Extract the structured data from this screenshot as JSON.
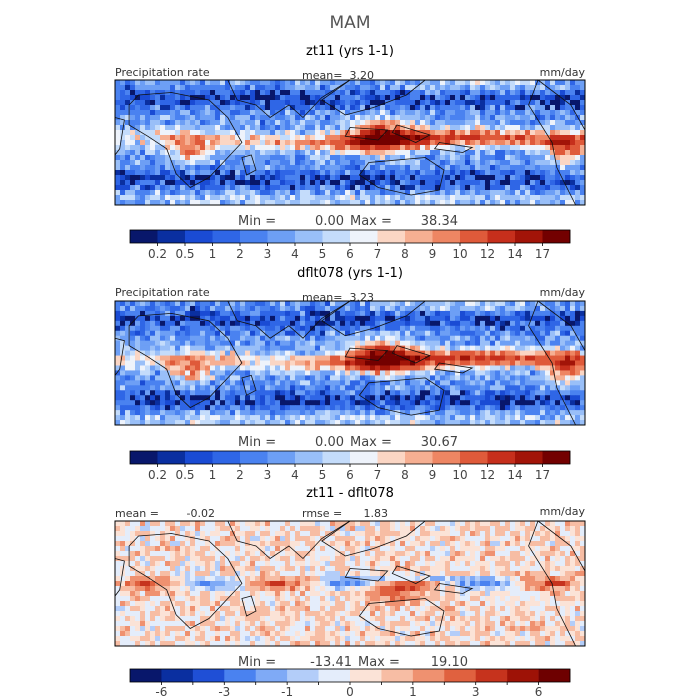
{
  "page_title": "MAM",
  "chart_data": [
    {
      "type": "heatmap",
      "title": "zt11 (yrs 1-1)",
      "variable": "Precipitation rate",
      "units": "mm/day",
      "stat_label": "mean=",
      "stat_value": "3.20",
      "min_max": {
        "min_label": "Min =",
        "min": "0.00",
        "max_label": "Max =",
        "max": "38.34"
      },
      "colorbar": {
        "ticks": [
          "0.2",
          "0.5",
          "1",
          "2",
          "3",
          "4",
          "5",
          "6",
          "7",
          "8",
          "9",
          "10",
          "12",
          "14",
          "17"
        ],
        "colors": [
          "#08176b",
          "#0a2fa0",
          "#1a4bd4",
          "#2f66e6",
          "#4a82f0",
          "#6d9ff5",
          "#99bff8",
          "#c4dcfb",
          "#eef3fb",
          "#fbd6c4",
          "#f6af92",
          "#ee8663",
          "#df5a3a",
          "#c62f1c",
          "#a21408",
          "#730000"
        ]
      },
      "regime": "precip",
      "seed": 11
    },
    {
      "type": "heatmap",
      "title": "dflt078 (yrs 1-1)",
      "variable": "Precipitation rate",
      "units": "mm/day",
      "stat_label": "mean=",
      "stat_value": "3.23",
      "min_max": {
        "min_label": "Min =",
        "min": "0.00",
        "max_label": "Max =",
        "max": "30.67"
      },
      "colorbar": {
        "ticks": [
          "0.2",
          "0.5",
          "1",
          "2",
          "3",
          "4",
          "5",
          "6",
          "7",
          "8",
          "9",
          "10",
          "12",
          "14",
          "17"
        ],
        "colors": [
          "#08176b",
          "#0a2fa0",
          "#1a4bd4",
          "#2f66e6",
          "#4a82f0",
          "#6d9ff5",
          "#99bff8",
          "#c4dcfb",
          "#eef3fb",
          "#fbd6c4",
          "#f6af92",
          "#ee8663",
          "#df5a3a",
          "#c62f1c",
          "#a21408",
          "#730000"
        ]
      },
      "regime": "precip",
      "seed": 78
    },
    {
      "type": "heatmap",
      "title": "zt11 - dflt078",
      "variable": "",
      "units": "mm/day",
      "left_label": "mean =",
      "left_value": "-0.02",
      "stat_label": "rmse =",
      "stat_value": "1.83",
      "min_max": {
        "min_label": "Min =",
        "min": "-13.41",
        "max_label": "Max =",
        "max": "19.10"
      },
      "colorbar": {
        "ticks": [
          "-6",
          "",
          "-3",
          "",
          "-1",
          "",
          "0",
          "",
          "1",
          "",
          "3",
          "",
          "6"
        ],
        "colors": [
          "#08176b",
          "#0a2fa0",
          "#1f4fd6",
          "#4a82f0",
          "#7faaf6",
          "#b3cdf9",
          "#e4edfb",
          "#fbe3d7",
          "#f7bda4",
          "#ef9170",
          "#e0613f",
          "#c6331d",
          "#9e1206",
          "#6e0000"
        ]
      },
      "regime": "diff",
      "seed": 5
    }
  ]
}
